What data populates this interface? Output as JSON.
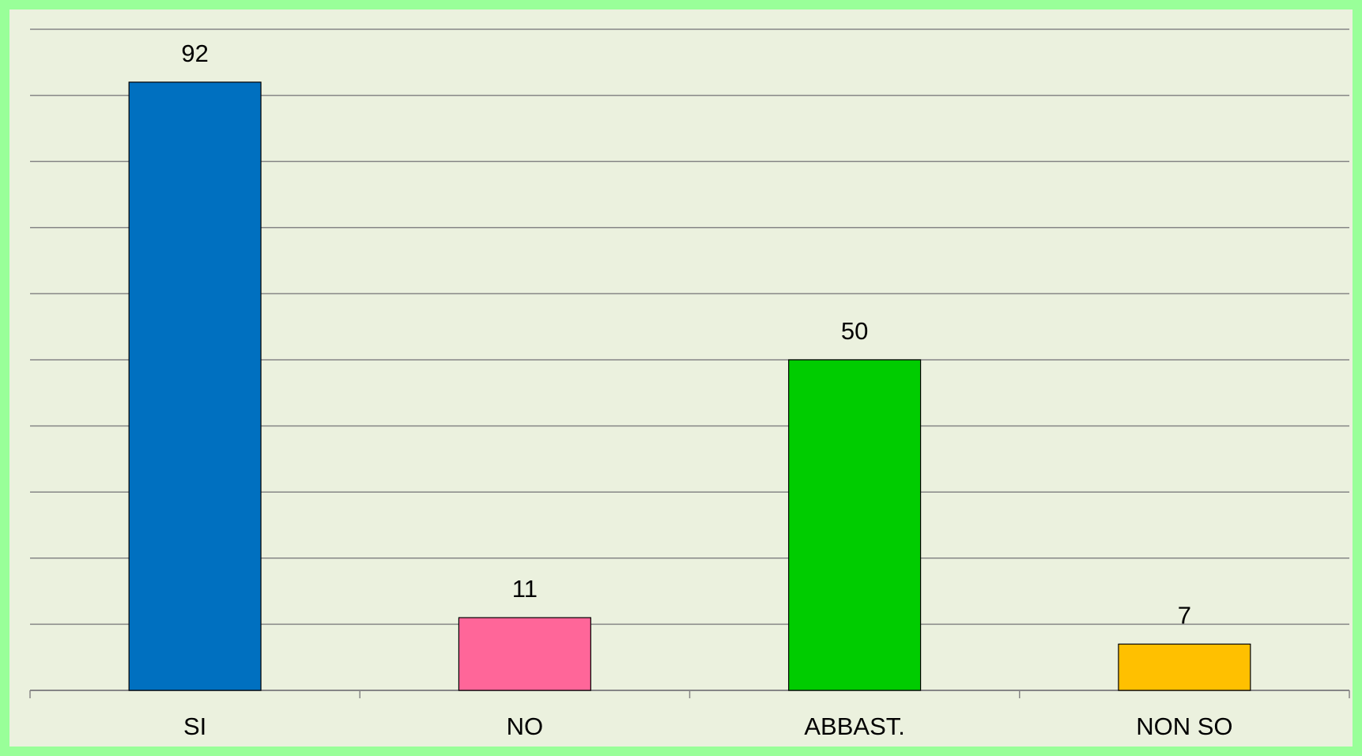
{
  "chart_data": {
    "type": "bar",
    "categories": [
      "SI",
      "NO",
      "ABBAST.",
      "NON SO"
    ],
    "values": [
      92,
      11,
      50,
      7
    ],
    "colors": [
      "#0070c0",
      "#ff6699",
      "#00cc00",
      "#ffc000"
    ],
    "ylim": [
      0,
      100
    ],
    "yticks": [
      0,
      10,
      20,
      30,
      40,
      50,
      60,
      70,
      80,
      90,
      100
    ],
    "grid": true,
    "data_labels": true
  }
}
